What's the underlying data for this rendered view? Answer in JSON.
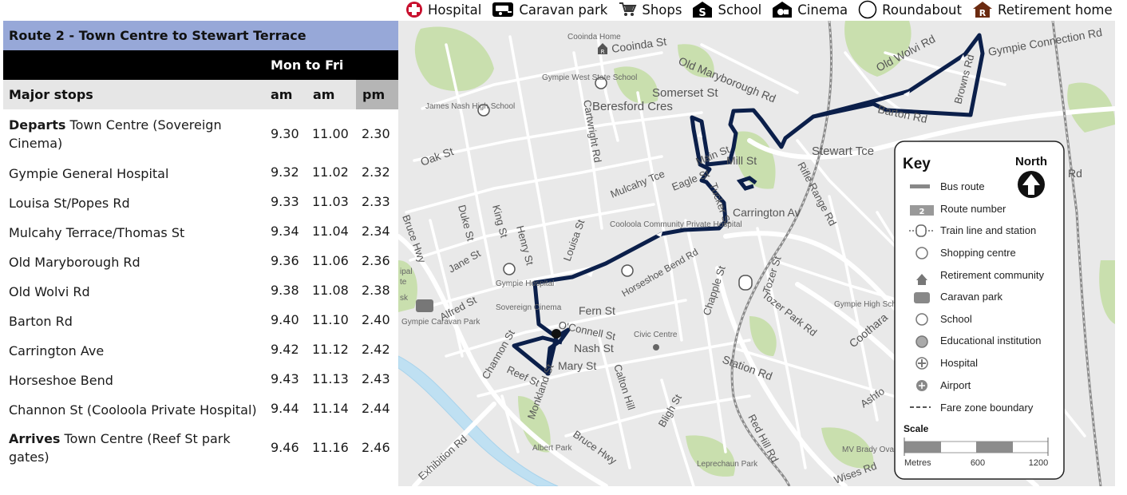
{
  "legend": {
    "items": [
      {
        "icon": "hospital-icon",
        "label": "Hospital"
      },
      {
        "icon": "caravan-park-icon",
        "label": "Caravan park"
      },
      {
        "icon": "shops-icon",
        "label": "Shops"
      },
      {
        "icon": "school-icon",
        "label": "School"
      },
      {
        "icon": "cinema-icon",
        "label": "Cinema"
      },
      {
        "icon": "roundabout-icon",
        "label": "Roundabout"
      },
      {
        "icon": "retirement-home-icon",
        "label": "Retirement home"
      }
    ]
  },
  "timetable": {
    "title": "Route 2 - Town Centre to Stewart Terrace",
    "days": "Mon to Fri",
    "header": {
      "stops": "Major stops",
      "col1": "am",
      "col2": "am",
      "col3": "pm"
    },
    "rows": [
      {
        "prefix": "Departs",
        "stop": " Town Centre (Sovereign Cinema)",
        "times": [
          "9.30",
          "11.00",
          "2.30"
        ]
      },
      {
        "prefix": "",
        "stop": "Gympie General Hospital",
        "times": [
          "9.32",
          "11.02",
          "2.32"
        ]
      },
      {
        "prefix": "",
        "stop": "Louisa St/Popes Rd",
        "times": [
          "9.33",
          "11.03",
          "2.33"
        ]
      },
      {
        "prefix": "",
        "stop": "Mulcahy Terrace/Thomas St",
        "times": [
          "9.34",
          "11.04",
          "2.34"
        ]
      },
      {
        "prefix": "",
        "stop": "Old Maryborough Rd",
        "times": [
          "9.36",
          "11.06",
          "2.36"
        ]
      },
      {
        "prefix": "",
        "stop": "Old Wolvi Rd",
        "times": [
          "9.38",
          "11.08",
          "2.38"
        ]
      },
      {
        "prefix": "",
        "stop": "Barton Rd",
        "times": [
          "9.40",
          "11.10",
          "2.40"
        ]
      },
      {
        "prefix": "",
        "stop": "Carrington Ave",
        "times": [
          "9.42",
          "11.12",
          "2.42"
        ]
      },
      {
        "prefix": "",
        "stop": "Horseshoe Bend",
        "times": [
          "9.43",
          "11.13",
          "2.43"
        ]
      },
      {
        "prefix": "",
        "stop": "Channon St (Cooloola Private Hospital)",
        "times": [
          "9.44",
          "11.14",
          "2.44"
        ]
      },
      {
        "prefix": "Arrives",
        "stop": " Town Centre (Reef St park gates)",
        "times": [
          "9.46",
          "11.16",
          "2.46"
        ]
      }
    ]
  },
  "map": {
    "streets": {
      "cooinda_st": "Cooinda St",
      "cooinda_home": "Cooinda Home",
      "old_maryborough_rd": "Old Maryborough Rd",
      "gympie_west_school": "Gympie West State School",
      "james_nash": "James Nash High School",
      "cartwright_rd": "Cartwright Rd",
      "beresford_cres": "Beresford Cres",
      "somerset_st": "Somerset St",
      "oak_st": "Oak St",
      "mulcahy_tce": "Mulcahy Tce",
      "main_st": "Main St",
      "eagle_st": "Eagle St",
      "mill_st": "Mill St",
      "stewart_tce": "Stewart Tce",
      "rifle_range_rd": "Rifle Range Rd",
      "carrington_av": "Carrington Av",
      "tucker_st": "Tucker St",
      "bruce_hwy": "Bruce Hwy",
      "duke_st": "Duke St",
      "king_st": "King St",
      "henry_st": "Henry St",
      "louisa_st": "Louisa St",
      "jane_st": "Jane St",
      "cooloola_hospital": "Cooloola Community Private Hospital",
      "horseshoe_bend_rd": "Horseshoe Bend Rd",
      "chapple_st": "Chapple St",
      "tozer_st": "Tozer St",
      "tozer_park_rd": "Tozer Park Rd",
      "gympie_high_school": "Gympie High School",
      "gympie_hospital": "Gympie Hospital",
      "sovereign_cinema": "Sovereign Cinema",
      "alfred_st": "Alfred St",
      "fern_st": "Fern St",
      "oconnell_st": "O'Connell St",
      "nash_st": "Nash St",
      "civic_centre": "Civic Centre",
      "mary_st": "Mary St",
      "reef_st": "Reef St",
      "channon_st": "Channon St",
      "monkland_st": "Monkland St",
      "calton_hill": "Calton Hill",
      "station_rd": "Station Rd",
      "bligh_st": "Bligh St",
      "red_hill_rd": "Red Hill Rd",
      "exhibition_rd": "Exhibition Rd",
      "bruce_hwy_2": "Bruce Hwy",
      "albert_park": "Albert Park",
      "leprechaun_park": "Leprechaun Park",
      "gympie_caravan_park": "Gympie Caravan Park",
      "old_wolvi_rd": "Old Wolvi Rd",
      "barton_rd": "Barton Rd",
      "browns_rd": "Browns Rd",
      "gympie_connection_rd": "Gympie Connection Rd",
      "coothara": "Coothara",
      "ashford": "Ashfo",
      "wises_rd": "Wises Rd",
      "mv_brady_oval": "MV Brady Oval",
      "rd": "Rd",
      "ipal": "ipal",
      "te": "te",
      "sk": "sk"
    },
    "key": {
      "title": "Key",
      "north": "North",
      "items": [
        {
          "icon": "bus-route-icon",
          "label": "Bus route"
        },
        {
          "icon": "route-number-icon",
          "label": "Route number",
          "badge": "2"
        },
        {
          "icon": "train-station-icon",
          "label": "Train line and station"
        },
        {
          "icon": "shopping-centre-icon",
          "label": "Shopping centre"
        },
        {
          "icon": "retirement-community-icon",
          "label": "Retirement community"
        },
        {
          "icon": "caravan-park-icon",
          "label": "Caravan park"
        },
        {
          "icon": "school-icon",
          "label": "School"
        },
        {
          "icon": "educational-institution-icon",
          "label": "Educational institution"
        },
        {
          "icon": "hospital-icon",
          "label": "Hospital"
        },
        {
          "icon": "airport-icon",
          "label": "Airport"
        },
        {
          "icon": "fare-zone-icon",
          "label": "Fare zone boundary"
        }
      ],
      "scale_label": "Scale",
      "scale_units": "Metres",
      "scale_ticks": [
        "600",
        "1200"
      ]
    }
  }
}
